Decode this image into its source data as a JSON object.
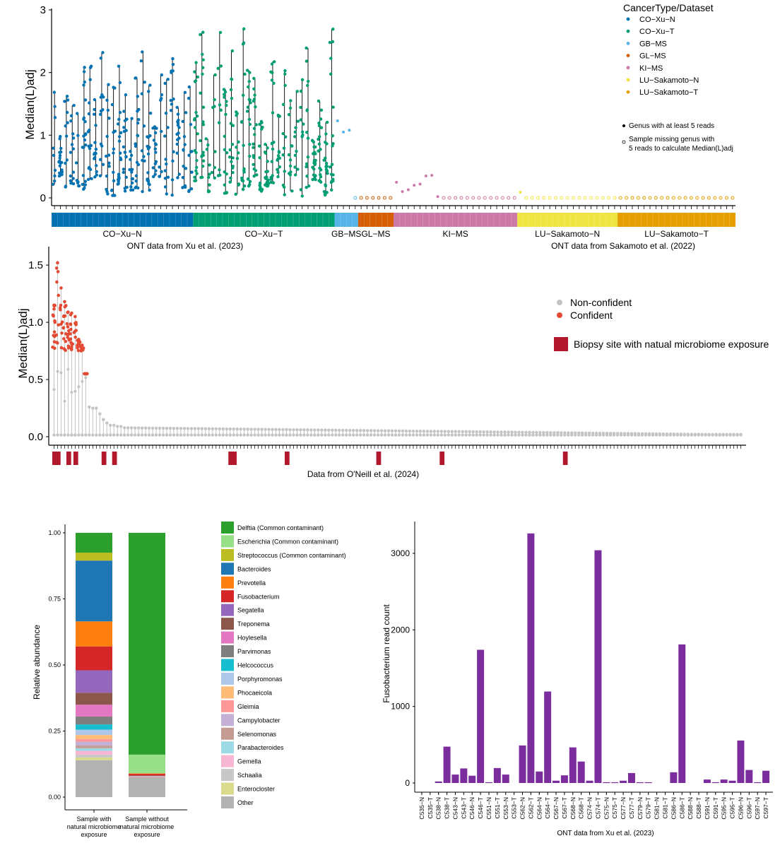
{
  "chart_data": [
    {
      "type": "scatter",
      "subtype": "strip-with-range-lines",
      "ylabel": "Median(L)adj",
      "ylim": [
        0,
        3
      ],
      "yticks": [
        0,
        1,
        2,
        3
      ],
      "legend": {
        "title": "CancerType/Dataset",
        "position": "top-right",
        "entries": [
          {
            "name": "CO−Xu−N",
            "color": "#0072b2"
          },
          {
            "name": "CO−Xu−T",
            "color": "#009e73"
          },
          {
            "name": "GB−MS",
            "color": "#56b4e9"
          },
          {
            "name": "GL−MS",
            "color": "#d55e00"
          },
          {
            "name": "KI−MS",
            "color": "#cc79a7"
          },
          {
            "name": "LU−Sakamoto−N",
            "color": "#f0e442"
          },
          {
            "name": "LU−Sakamoto−T",
            "color": "#e69f00"
          }
        ],
        "markers": [
          {
            "symbol": "filled",
            "label_lines": [
              "Genus with at least 5 reads"
            ]
          },
          {
            "symbol": "open",
            "label_lines": [
              "Sample missing genus with",
              "5 reads to calculate Median(L)adj"
            ]
          }
        ]
      },
      "groups": [
        {
          "name": "CO−Xu−N",
          "color": "#0072b2",
          "samples": 24,
          "median": 0.8,
          "max": 2.5
        },
        {
          "name": "CO−Xu−T",
          "color": "#009e73",
          "samples": 24,
          "median": 0.85,
          "max": 2.88
        },
        {
          "name": "GB−MS",
          "color": "#56b4e9",
          "samples": 4,
          "points": [
            1.23,
            1.05,
            1.08
          ]
        },
        {
          "name": "GL−MS",
          "color": "#d55e00",
          "samples": 6,
          "points": []
        },
        {
          "name": "KI−MS",
          "color": "#cc79a7",
          "samples": 21,
          "points": [
            0.25,
            0.1,
            0.13,
            0.2,
            0.22,
            0.35,
            0.36,
            0.02
          ]
        },
        {
          "name": "LU−Sakamoto−N",
          "color": "#f0e442",
          "samples": 17,
          "points": [
            0.09
          ]
        },
        {
          "name": "LU−Sakamoto−T",
          "color": "#e69f00",
          "samples": 20,
          "points": []
        }
      ],
      "bar_groups": [
        "CO−Xu−N",
        "CO−Xu−T",
        "GB−MS",
        "GL−MS",
        "KI−MS",
        "LU−Sakamoto−N",
        "LU−Sakamoto−T"
      ],
      "dataset_captions": [
        "ONT data from Xu et al. (2023)",
        "ONT data from Sakamoto et al. (2022)"
      ]
    },
    {
      "type": "scatter",
      "subtype": "lollipop",
      "ylabel": "Median(L)adj",
      "ylim": [
        0,
        1.6
      ],
      "yticks": [
        0.0,
        0.5,
        1.0,
        1.5
      ],
      "xlabel": "Data from O'Neill et al. (2024)",
      "legend": {
        "position": "right",
        "entries": [
          {
            "name": "Non-confident",
            "color": "#c4c4c4"
          },
          {
            "name": "Confident",
            "color": "#e34a33"
          },
          {
            "name": "Biopsy site with natual microbiome exposure",
            "color": "#b2182b",
            "symbol": "square"
          }
        ]
      },
      "samples": 196,
      "max_median_first_samples": [
        1.15,
        1.52,
        1.3,
        1.18,
        1.09,
        1.08,
        1.05,
        0.85,
        0.8,
        0.55,
        0.26,
        0.25,
        0.25,
        0.2,
        0.15,
        0.12,
        0.1,
        0.1,
        0.09,
        0.09
      ],
      "biopsy_exposure_samples": [
        0,
        1,
        4,
        6,
        14,
        17,
        50,
        51,
        66,
        92,
        110,
        145
      ]
    },
    {
      "type": "bar",
      "subtype": "stacked",
      "ylabel": "Relative abundance",
      "ylim": [
        0,
        1
      ],
      "yticks": [
        "0.00",
        "0.25",
        "0.50",
        "0.75",
        "1.00"
      ],
      "categories": [
        [
          "Sample with",
          "natural microbiome",
          "exposure"
        ],
        [
          "Sample without",
          "natural microbiome",
          "exposure"
        ]
      ],
      "series": [
        {
          "name": "Delftia (Common contaminant)",
          "color": "#2ca02c",
          "values": [
            0.075,
            0.83
          ]
        },
        {
          "name": "Escherichia (Common contaminant)",
          "color": "#98df8a",
          "values": [
            0.0,
            0.07
          ]
        },
        {
          "name": "Streptococcus (Common contaminant)",
          "color": "#bcbd22",
          "values": [
            0.03,
            0.0
          ]
        },
        {
          "name": "Bacteroides",
          "color": "#1f77b4",
          "values": [
            0.23,
            0.0
          ]
        },
        {
          "name": "Prevotella",
          "color": "#ff7f0e",
          "values": [
            0.095,
            0.002
          ]
        },
        {
          "name": "Fusobacterium",
          "color": "#d62728",
          "values": [
            0.09,
            0.006
          ]
        },
        {
          "name": "Segatella",
          "color": "#9467bd",
          "values": [
            0.085,
            0.0
          ]
        },
        {
          "name": "Treponema",
          "color": "#8c564b",
          "values": [
            0.045,
            0.002
          ]
        },
        {
          "name": "Hoylesella",
          "color": "#e377c2",
          "values": [
            0.045,
            0.0
          ]
        },
        {
          "name": "Parvimonas",
          "color": "#7f7f7f",
          "values": [
            0.03,
            0.0
          ]
        },
        {
          "name": "Helcococcus",
          "color": "#17becf",
          "values": [
            0.02,
            0.0
          ]
        },
        {
          "name": "Porphyromonas",
          "color": "#aec7e8",
          "values": [
            0.02,
            0.002
          ]
        },
        {
          "name": "Phocaeicola",
          "color": "#ffbb78",
          "values": [
            0.015,
            0.0
          ]
        },
        {
          "name": "Gleimia",
          "color": "#ff9896",
          "values": [
            0.01,
            0.002
          ]
        },
        {
          "name": "Campylobacter",
          "color": "#c5b0d5",
          "values": [
            0.015,
            0.0
          ]
        },
        {
          "name": "Selenomonas",
          "color": "#c49c94",
          "values": [
            0.01,
            0.0
          ]
        },
        {
          "name": "Parabacteroides",
          "color": "#9edae5",
          "values": [
            0.01,
            0.0
          ]
        },
        {
          "name": "Gemella",
          "color": "#f7b6d2",
          "values": [
            0.015,
            0.0
          ]
        },
        {
          "name": "Schaalia",
          "color": "#c7c7c7",
          "values": [
            0.01,
            0.0
          ]
        },
        {
          "name": "Enterocloster",
          "color": "#dbdb8d",
          "values": [
            0.01,
            0.0
          ]
        },
        {
          "name": "Other",
          "color": "#b3b3b3",
          "values": [
            0.14,
            0.075
          ]
        }
      ]
    },
    {
      "type": "bar",
      "ylabel": "Fusobacterium read count",
      "xlabel": "ONT data from Xu et al. (2023)",
      "ylim": [
        0,
        3400
      ],
      "yticks": [
        0,
        1000,
        2000,
        3000
      ],
      "color": "#7b2d9e",
      "categories": [
        "C535−N",
        "C535−T",
        "C538−N",
        "C538−T",
        "C543−N",
        "C543−T",
        "C546−N",
        "C546−T",
        "C551−N",
        "C551−T",
        "C553−N",
        "C553−T",
        "C562−N",
        "C562−T",
        "C564−N",
        "C564−T",
        "C567−N",
        "C567−T",
        "C568−N",
        "C568−T",
        "C574−N",
        "C574−T",
        "C575−N",
        "C575−T",
        "C577−N",
        "C577−T",
        "C579−N",
        "C579−T",
        "C581−N",
        "C581−T",
        "C586−N",
        "C586−T",
        "C588−N",
        "C588−T",
        "C591−N",
        "C591−T",
        "C595−N",
        "C595−T",
        "C596−N",
        "C596−T",
        "C597−N",
        "C597−T"
      ],
      "values": [
        0,
        0,
        20,
        475,
        110,
        190,
        95,
        1740,
        10,
        195,
        110,
        0,
        490,
        3260,
        150,
        1195,
        30,
        100,
        465,
        280,
        30,
        3040,
        10,
        10,
        30,
        130,
        10,
        10,
        0,
        0,
        140,
        1810,
        0,
        0,
        45,
        10,
        45,
        30,
        555,
        170,
        10,
        160
      ]
    }
  ],
  "labels": {
    "panel_a_bar_labels": [
      "CO−Xu−N",
      "CO−Xu−T",
      "GB−MS",
      "GL−MS",
      "KI−MS",
      "LU−Sakamoto−N",
      "LU−Sakamoto−T"
    ]
  }
}
